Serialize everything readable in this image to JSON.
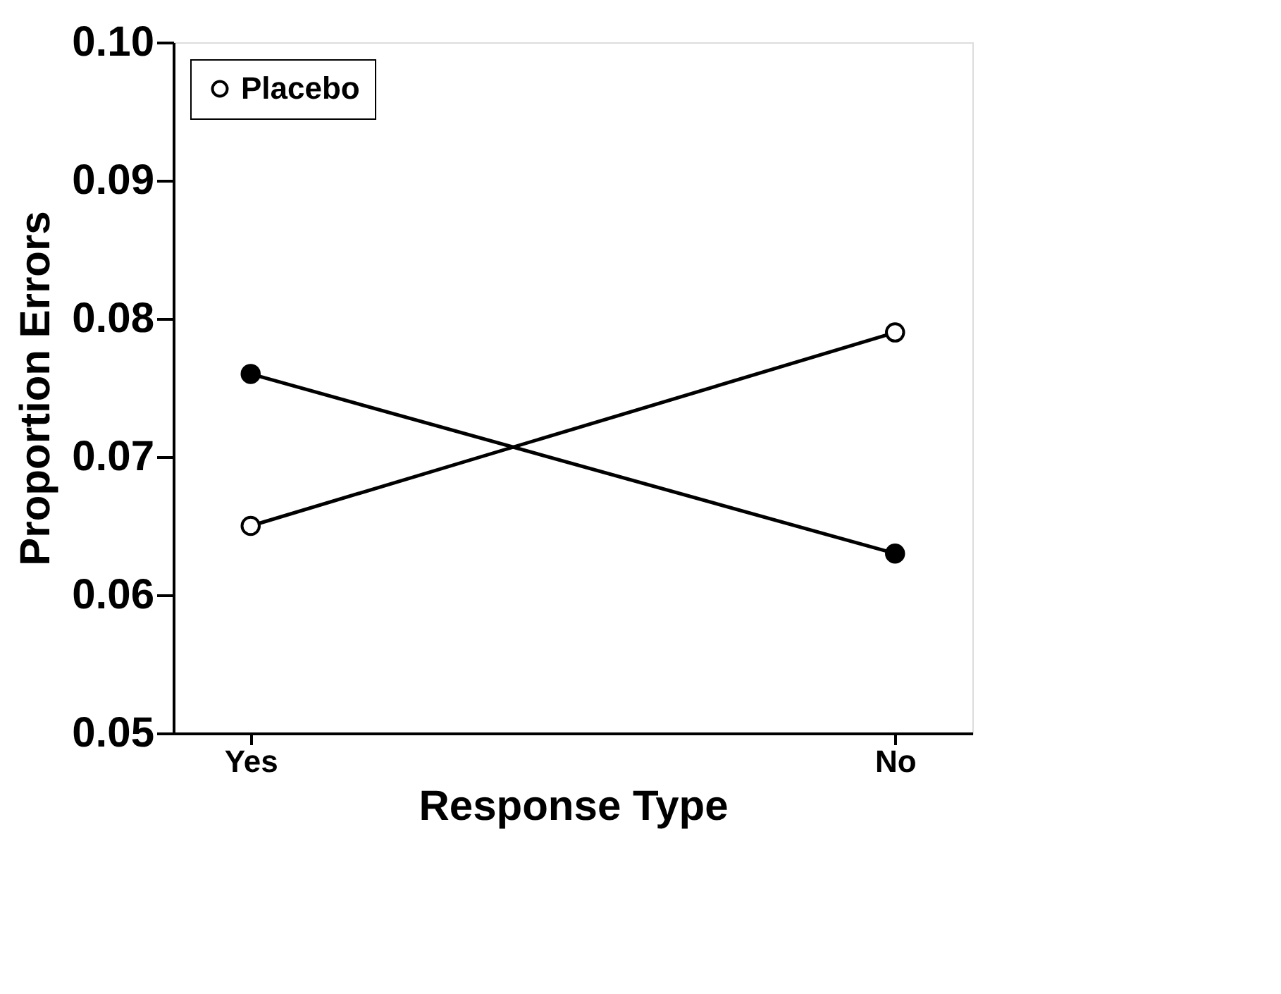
{
  "chart_data": {
    "type": "line",
    "xlabel": "Response Type",
    "ylabel": "Proportion Errors",
    "categories": [
      "Yes",
      "No"
    ],
    "series": [
      {
        "color": "#000000",
        "values": [
          0.076,
          0.063
        ]
      },
      {
        "name": "Placebo",
        "color": "#ffffff",
        "values": [
          0.065,
          0.079
        ]
      }
    ],
    "ylim": [
      0.05,
      0.1
    ],
    "yticks": [
      0.05,
      0.06,
      0.07,
      0.08,
      0.09,
      {
        "value": 0.1,
        "label": "0.10"
      }
    ],
    "marker": "circle",
    "legend": "top left",
    "grid": false
  }
}
